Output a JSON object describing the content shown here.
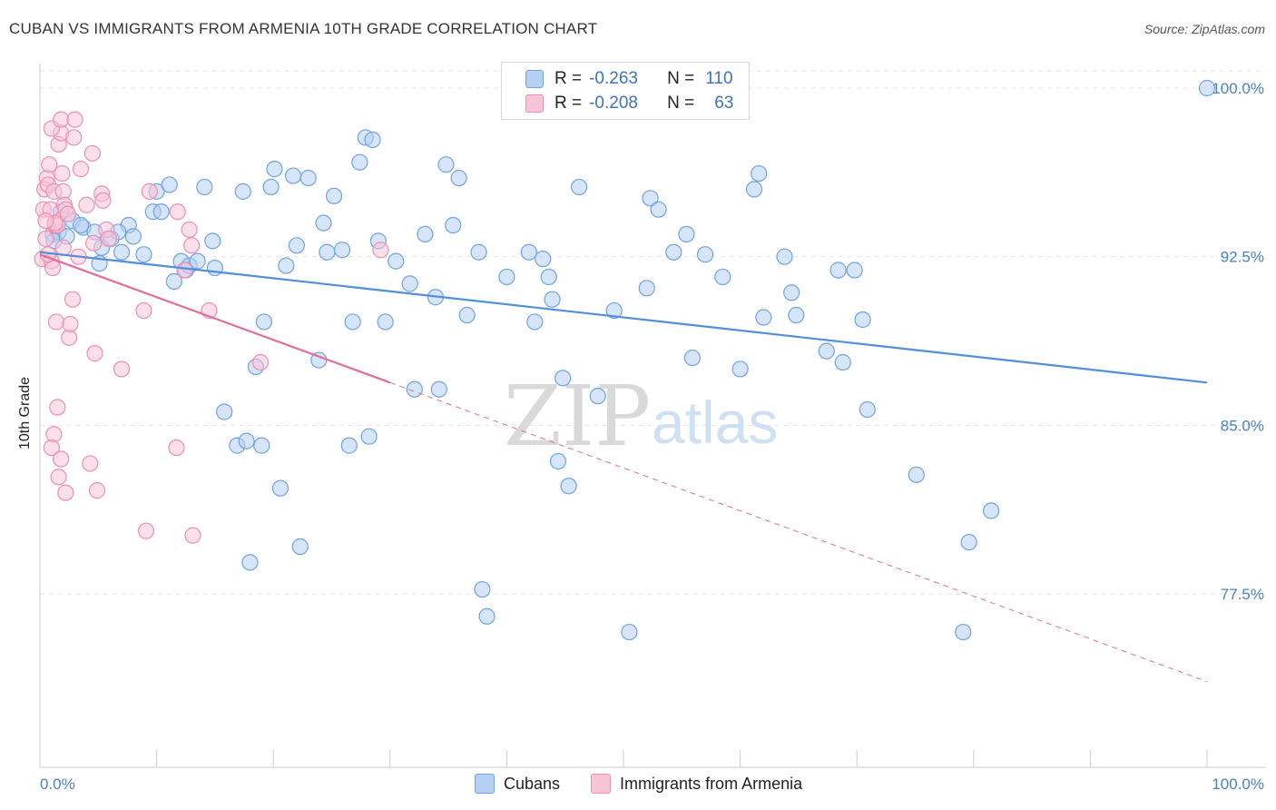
{
  "title": "CUBAN VS IMMIGRANTS FROM ARMENIA 10TH GRADE CORRELATION CHART",
  "source": "Source: ZipAtlas.com",
  "watermark": {
    "zip": "ZIP",
    "atlas": "atlas"
  },
  "legend": {
    "r_label": "R =",
    "n_label": "N =",
    "rows": [
      {
        "r": "-0.263",
        "n": "110",
        "color": "#6fa3e3",
        "fill": "#b5d0f3"
      },
      {
        "r": "-0.208",
        "n": "63",
        "color": "#ec8fb0",
        "fill": "#f8c5d8"
      }
    ]
  },
  "bottom_legend": [
    {
      "label": "Cubans",
      "color": "#6fa3e3",
      "fill": "#b5d0f3"
    },
    {
      "label": "Immigrants from Armenia",
      "color": "#ec8fb0",
      "fill": "#f8c5d8"
    }
  ],
  "chart_data": {
    "type": "scatter",
    "title": "CUBAN VS IMMIGRANTS FROM ARMENIA 10TH GRADE CORRELATION CHART",
    "xlabel": "",
    "ylabel": "10th Grade",
    "xlim": [
      0,
      100
    ],
    "ylim": [
      70.8,
      101.0
    ],
    "x_tick_labels": [
      "0.0%",
      "100.0%"
    ],
    "y_ticks": [
      77.5,
      85.0,
      92.5,
      100.0
    ],
    "y_tick_labels": [
      "77.5%",
      "85.0%",
      "92.5%",
      "100.0%"
    ],
    "grid": "horizontal dashed",
    "legend_position": "top-center",
    "series": [
      {
        "name": "Cubans",
        "color": "#4f8fdc",
        "fill": "#b5d0f3",
        "trend": {
          "x": [
            0,
            100
          ],
          "y": [
            92.7,
            86.9
          ]
        },
        "points": [
          [
            1.1,
            93.5
          ],
          [
            1.6,
            93.6
          ],
          [
            1.8,
            94.5
          ],
          [
            2.8,
            94.1
          ],
          [
            3.7,
            93.8
          ],
          [
            4.7,
            93.6
          ],
          [
            5.3,
            92.9
          ],
          [
            6.1,
            93.3
          ],
          [
            5.1,
            92.2
          ],
          [
            7.0,
            92.7
          ],
          [
            7.6,
            93.9
          ],
          [
            8.0,
            93.4
          ],
          [
            8.9,
            92.6
          ],
          [
            9.7,
            94.5
          ],
          [
            10.0,
            95.4
          ],
          [
            10.4,
            94.5
          ],
          [
            11.1,
            95.7
          ],
          [
            11.5,
            91.4
          ],
          [
            12.1,
            92.3
          ],
          [
            12.5,
            91.9
          ],
          [
            12.8,
            92.1
          ],
          [
            13.5,
            92.3
          ],
          [
            14.1,
            95.6
          ],
          [
            14.8,
            93.2
          ],
          [
            15.8,
            85.6
          ],
          [
            16.9,
            84.1
          ],
          [
            17.7,
            84.3
          ],
          [
            19.0,
            84.1
          ],
          [
            18.0,
            78.9
          ],
          [
            17.4,
            95.4
          ],
          [
            18.5,
            87.6
          ],
          [
            19.2,
            89.6
          ],
          [
            19.8,
            95.6
          ],
          [
            20.1,
            96.4
          ],
          [
            20.6,
            82.2
          ],
          [
            21.1,
            92.1
          ],
          [
            21.7,
            96.1
          ],
          [
            22.0,
            93.0
          ],
          [
            22.3,
            79.6
          ],
          [
            23.0,
            96.0
          ],
          [
            23.9,
            87.9
          ],
          [
            24.3,
            94.0
          ],
          [
            24.6,
            92.7
          ],
          [
            25.2,
            95.2
          ],
          [
            25.9,
            92.8
          ],
          [
            26.5,
            84.1
          ],
          [
            26.8,
            89.6
          ],
          [
            27.4,
            96.7
          ],
          [
            27.9,
            97.8
          ],
          [
            28.5,
            97.7
          ],
          [
            28.2,
            84.5
          ],
          [
            29.0,
            93.2
          ],
          [
            29.6,
            89.6
          ],
          [
            30.5,
            92.3
          ],
          [
            31.7,
            91.3
          ],
          [
            32.1,
            86.6
          ],
          [
            33.0,
            93.5
          ],
          [
            33.9,
            90.7
          ],
          [
            34.2,
            86.6
          ],
          [
            34.8,
            96.6
          ],
          [
            35.4,
            93.9
          ],
          [
            35.9,
            96.0
          ],
          [
            36.6,
            89.9
          ],
          [
            37.6,
            92.7
          ],
          [
            37.9,
            77.7
          ],
          [
            38.3,
            76.5
          ],
          [
            40.0,
            91.6
          ],
          [
            41.9,
            92.7
          ],
          [
            42.4,
            89.6
          ],
          [
            43.1,
            92.4
          ],
          [
            43.6,
            91.6
          ],
          [
            43.9,
            90.6
          ],
          [
            44.4,
            83.4
          ],
          [
            44.8,
            87.1
          ],
          [
            45.3,
            82.3
          ],
          [
            46.2,
            95.6
          ],
          [
            47.8,
            86.3
          ],
          [
            49.2,
            90.1
          ],
          [
            50.5,
            75.8
          ],
          [
            52.0,
            91.1
          ],
          [
            52.3,
            95.1
          ],
          [
            53.0,
            94.6
          ],
          [
            54.3,
            92.7
          ],
          [
            55.4,
            93.5
          ],
          [
            55.9,
            88.0
          ],
          [
            57.0,
            92.6
          ],
          [
            58.5,
            91.6
          ],
          [
            60.0,
            87.5
          ],
          [
            61.2,
            95.5
          ],
          [
            61.6,
            96.2
          ],
          [
            62.0,
            89.8
          ],
          [
            63.8,
            92.5
          ],
          [
            64.4,
            90.9
          ],
          [
            64.8,
            89.9
          ],
          [
            67.4,
            88.3
          ],
          [
            68.4,
            91.9
          ],
          [
            68.8,
            87.8
          ],
          [
            69.8,
            91.9
          ],
          [
            70.5,
            89.7
          ],
          [
            70.9,
            85.7
          ],
          [
            75.1,
            82.8
          ],
          [
            79.6,
            79.8
          ],
          [
            81.5,
            81.2
          ],
          [
            79.1,
            75.8
          ],
          [
            100.0,
            100.0
          ],
          [
            1.2,
            93.2
          ],
          [
            2.3,
            93.4
          ],
          [
            6.7,
            93.6
          ],
          [
            3.5,
            93.9
          ],
          [
            15.0,
            92.0
          ]
        ]
      },
      {
        "name": "Immigrants from Armenia",
        "color": "#e46c98",
        "fill": "#f8c5d8",
        "trend": {
          "x": [
            0,
            30
          ],
          "y": [
            92.6,
            86.9
          ]
        },
        "trend_dashed": {
          "x": [
            30,
            100
          ],
          "y": [
            86.9,
            73.6
          ]
        },
        "points": [
          [
            0.2,
            92.4
          ],
          [
            0.3,
            94.6
          ],
          [
            0.4,
            95.5
          ],
          [
            0.5,
            93.3
          ],
          [
            0.6,
            96.0
          ],
          [
            0.7,
            95.7
          ],
          [
            0.8,
            96.6
          ],
          [
            0.9,
            94.6
          ],
          [
            1.0,
            92.3
          ],
          [
            1.1,
            92.0
          ],
          [
            1.2,
            95.4
          ],
          [
            1.3,
            93.9
          ],
          [
            1.5,
            93.9
          ],
          [
            1.6,
            97.5
          ],
          [
            1.8,
            98.0
          ],
          [
            1.9,
            96.2
          ],
          [
            2.0,
            95.4
          ],
          [
            2.1,
            94.8
          ],
          [
            2.2,
            94.6
          ],
          [
            2.4,
            94.4
          ],
          [
            1.0,
            98.2
          ],
          [
            1.8,
            98.6
          ],
          [
            2.9,
            97.8
          ],
          [
            3.0,
            98.6
          ],
          [
            3.5,
            96.4
          ],
          [
            4.0,
            94.8
          ],
          [
            4.5,
            97.1
          ],
          [
            5.3,
            95.3
          ],
          [
            5.4,
            95.0
          ],
          [
            5.7,
            93.7
          ],
          [
            5.9,
            93.3
          ],
          [
            3.3,
            92.5
          ],
          [
            4.6,
            93.1
          ],
          [
            1.4,
            89.6
          ],
          [
            2.5,
            88.9
          ],
          [
            2.6,
            89.5
          ],
          [
            2.8,
            90.6
          ],
          [
            4.7,
            88.2
          ],
          [
            7.0,
            87.5
          ],
          [
            8.9,
            90.1
          ],
          [
            1.5,
            85.8
          ],
          [
            1.2,
            84.6
          ],
          [
            1.0,
            84.0
          ],
          [
            1.8,
            83.5
          ],
          [
            1.6,
            82.7
          ],
          [
            2.2,
            82.0
          ],
          [
            4.3,
            83.3
          ],
          [
            4.9,
            82.1
          ],
          [
            9.1,
            80.3
          ],
          [
            11.7,
            84.0
          ],
          [
            13.1,
            80.1
          ],
          [
            14.5,
            90.1
          ],
          [
            12.4,
            91.9
          ],
          [
            9.4,
            95.4
          ],
          [
            11.8,
            94.5
          ],
          [
            12.8,
            93.7
          ],
          [
            13.0,
            93.0
          ],
          [
            18.9,
            87.8
          ],
          [
            29.2,
            92.8
          ],
          [
            1.3,
            94.0
          ],
          [
            0.7,
            92.6
          ],
          [
            2.0,
            92.9
          ],
          [
            0.5,
            94.1
          ]
        ]
      }
    ]
  }
}
